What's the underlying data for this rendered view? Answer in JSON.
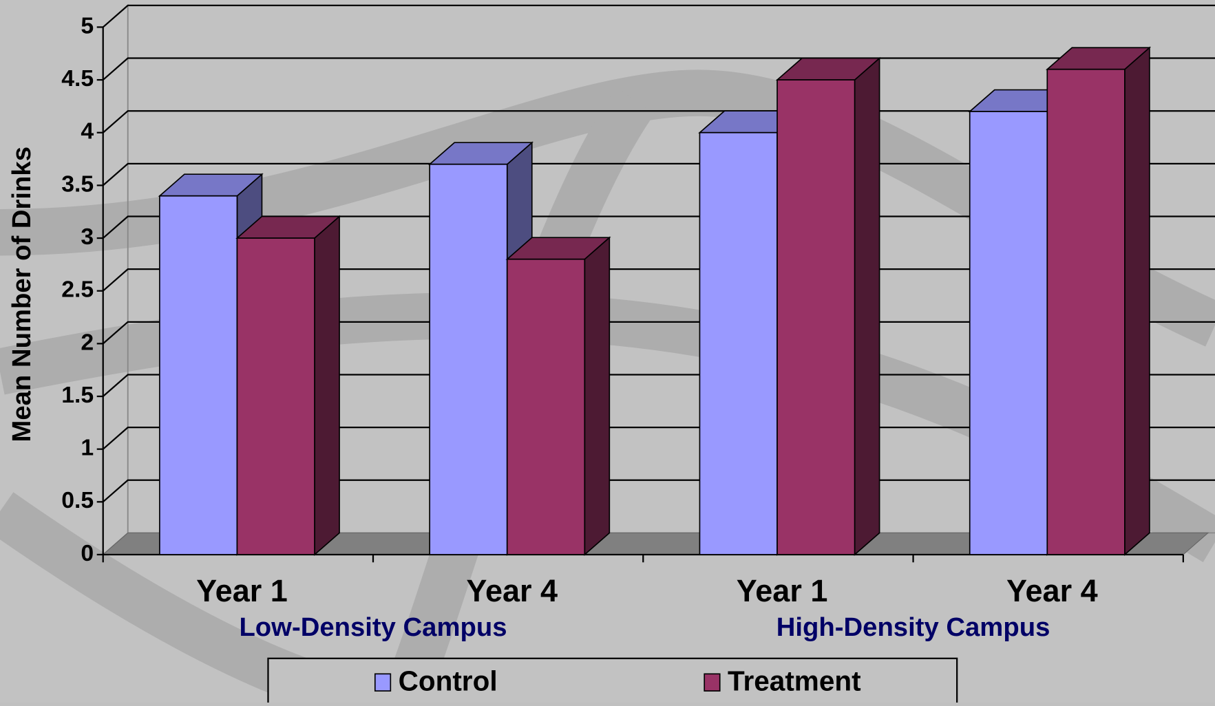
{
  "chart_data": {
    "type": "bar3d",
    "y_label": "Mean Number of Drinks",
    "categories": [
      "Year 1",
      "Year 4",
      "Year 1",
      "Year 4"
    ],
    "groups": [
      "Low-Density Campus",
      "High-Density Campus"
    ],
    "series": [
      {
        "name": "Control",
        "color": "#9999ff",
        "values": [
          3.4,
          3.7,
          4.0,
          4.2
        ]
      },
      {
        "name": "Treatment",
        "color": "#993366",
        "values": [
          3.0,
          2.8,
          4.5,
          4.6
        ]
      }
    ],
    "ylim": [
      0,
      5
    ],
    "yticks": [
      0,
      0.5,
      1,
      1.5,
      2,
      2.5,
      3,
      3.5,
      4,
      4.5,
      5
    ],
    "grid": true
  }
}
